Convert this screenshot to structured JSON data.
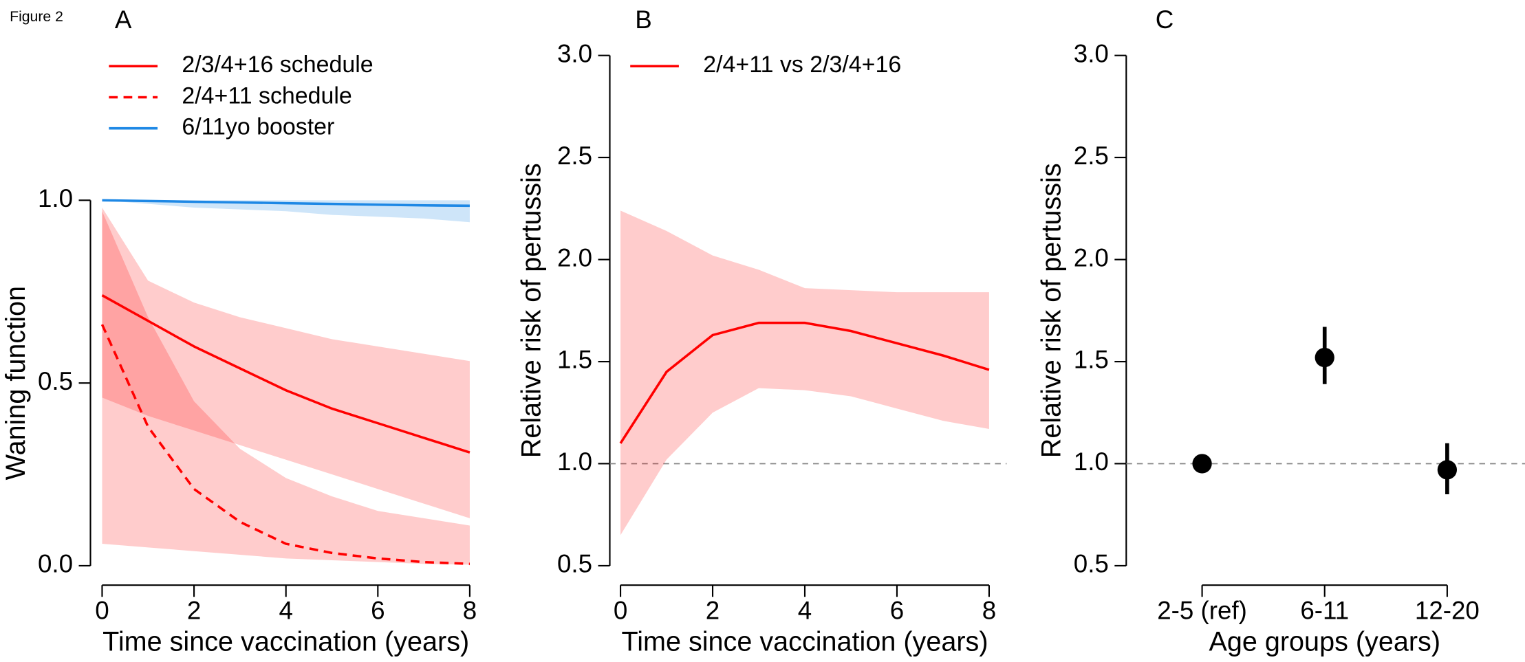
{
  "figure_label": "Figure 2",
  "chart_data": [
    {
      "type": "line",
      "panel": "A",
      "xlabel": "Time since vaccination (years)",
      "ylabel": "Waning function",
      "x": [
        0,
        1,
        2,
        3,
        4,
        5,
        6,
        7,
        8
      ],
      "xlim": [
        0,
        8
      ],
      "xticks": [
        0,
        2,
        4,
        6,
        8
      ],
      "ylim": [
        0,
        1
      ],
      "yticks": [
        {
          "value": 0,
          "label": "0.0"
        },
        0.5,
        {
          "value": 1,
          "label": "1.0"
        }
      ],
      "series": [
        {
          "name": "2/3/4+16 schedule",
          "color": "#ff0000",
          "dash": false,
          "values": [
            0.74,
            0.67,
            0.6,
            0.54,
            0.48,
            0.43,
            0.39,
            0.35,
            0.31
          ],
          "lower": [
            0.46,
            0.41,
            0.37,
            0.33,
            0.29,
            0.25,
            0.21,
            0.17,
            0.13
          ],
          "upper": [
            0.98,
            0.78,
            0.72,
            0.68,
            0.65,
            0.62,
            0.6,
            0.58,
            0.56
          ]
        },
        {
          "name": "2/4+11 schedule",
          "color": "#ff0000",
          "dash": true,
          "values": [
            0.66,
            0.38,
            0.21,
            0.12,
            0.06,
            0.035,
            0.02,
            0.01,
            0.005
          ],
          "lower": [
            0.06,
            0.05,
            0.04,
            0.03,
            0.02,
            0.015,
            0.01,
            0.005,
            0.003
          ],
          "upper": [
            0.97,
            0.68,
            0.45,
            0.32,
            0.24,
            0.19,
            0.15,
            0.13,
            0.11
          ]
        },
        {
          "name": "6/11yo booster",
          "color": "#1e88e5",
          "dash": false,
          "values": [
            1,
            0.998,
            0.996,
            0.994,
            0.992,
            0.99,
            0.988,
            0.986,
            0.985
          ],
          "lower": [
            1,
            0.99,
            0.98,
            0.975,
            0.97,
            0.96,
            0.955,
            0.95,
            0.94
          ],
          "upper": [
            1,
            1,
            1,
            1,
            1,
            1,
            1,
            1,
            1
          ]
        }
      ]
    },
    {
      "type": "line",
      "panel": "B",
      "xlabel": "Time since vaccination (years)",
      "ylabel": "Relative risk of pertussis",
      "x": [
        0,
        1,
        2,
        3,
        4,
        5,
        6,
        7,
        8
      ],
      "xlim": [
        0,
        8
      ],
      "xticks": [
        0,
        2,
        4,
        6,
        8
      ],
      "ylim": [
        0.5,
        3
      ],
      "yticks": [
        0.5,
        {
          "value": 1,
          "label": "1.0"
        },
        1.5,
        {
          "value": 2,
          "label": "2.0"
        },
        2.5,
        {
          "value": 3,
          "label": "3.0"
        }
      ],
      "refline": 1,
      "series": [
        {
          "name": "2/4+11 vs 2/3/4+16",
          "color": "#ff0000",
          "dash": false,
          "values": [
            1.1,
            1.45,
            1.63,
            1.69,
            1.69,
            1.65,
            1.59,
            1.53,
            1.46
          ],
          "lower": [
            0.65,
            1.02,
            1.25,
            1.37,
            1.36,
            1.33,
            1.27,
            1.21,
            1.17
          ],
          "upper": [
            2.24,
            2.14,
            2.02,
            1.95,
            1.86,
            1.85,
            1.84,
            1.84,
            1.84
          ]
        }
      ]
    },
    {
      "type": "point",
      "panel": "C",
      "xlabel": "Age groups (years)",
      "ylabel": "Relative risk of pertussis",
      "categories": [
        "2-5 (ref)",
        "6-11",
        "12-20"
      ],
      "ylim": [
        0.5,
        3
      ],
      "yticks": [
        0.5,
        {
          "value": 1,
          "label": "1.0"
        },
        1.5,
        {
          "value": 2,
          "label": "2.0"
        },
        2.5,
        {
          "value": 3,
          "label": "3.0"
        }
      ],
      "refline": 1,
      "series": [
        {
          "color": "#000000",
          "values": [
            1,
            1.52,
            0.97
          ],
          "lower": [
            null,
            1.39,
            0.85
          ],
          "upper": [
            null,
            1.67,
            1.1
          ]
        }
      ]
    }
  ]
}
